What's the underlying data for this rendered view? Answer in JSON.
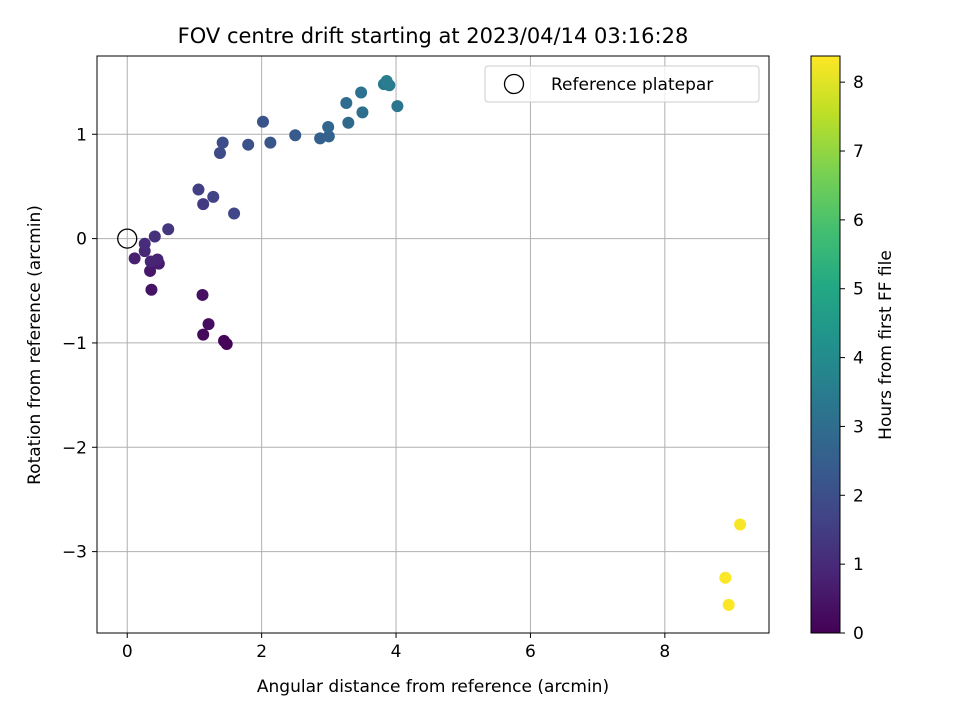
{
  "chart_data": {
    "type": "scatter",
    "title": "FOV centre drift starting at 2023/04/14 03:16:28",
    "xlabel": "Angular distance from reference (arcmin)",
    "ylabel": "Rotation from reference (arcmin)",
    "xlim": [
      -0.45,
      9.55
    ],
    "ylim": [
      -3.78,
      1.75
    ],
    "xticks": [
      0,
      2,
      4,
      6,
      8
    ],
    "xtick_labels": [
      "0",
      "2",
      "4",
      "6",
      "8"
    ],
    "yticks": [
      1,
      0,
      -1,
      -2,
      -3
    ],
    "ytick_labels": [
      "1",
      "0",
      "−1",
      "−2",
      "−3"
    ],
    "grid": true,
    "legend": {
      "position": "upper right",
      "label": "Reference platepar"
    },
    "reference_point": {
      "x": 0,
      "y": 0
    },
    "colorbar": {
      "label": "Hours from first FF file",
      "colormap": "viridis",
      "range": [
        0,
        8.38
      ],
      "ticks": [
        0,
        1,
        2,
        3,
        4,
        5,
        6,
        7,
        8
      ],
      "tick_labels": [
        "0",
        "1",
        "2",
        "3",
        "4",
        "5",
        "6",
        "7",
        "8"
      ]
    },
    "points": [
      {
        "x": 1.48,
        "y": -1.01,
        "c": 0.05
      },
      {
        "x": 1.44,
        "y": -0.98,
        "c": 0.12
      },
      {
        "x": 1.13,
        "y": -0.92,
        "c": 0.2
      },
      {
        "x": 1.21,
        "y": -0.82,
        "c": 0.28
      },
      {
        "x": 1.12,
        "y": -0.54,
        "c": 0.36
      },
      {
        "x": 0.36,
        "y": -0.49,
        "c": 0.45
      },
      {
        "x": 0.34,
        "y": -0.31,
        "c": 0.55
      },
      {
        "x": 0.47,
        "y": -0.24,
        "c": 0.65
      },
      {
        "x": 0.11,
        "y": -0.19,
        "c": 0.75
      },
      {
        "x": 0.45,
        "y": -0.2,
        "c": 0.8
      },
      {
        "x": 0.35,
        "y": -0.22,
        "c": 0.85
      },
      {
        "x": 0.26,
        "y": -0.12,
        "c": 0.95
      },
      {
        "x": 0.26,
        "y": -0.05,
        "c": 1.05
      },
      {
        "x": 0.41,
        "y": 0.02,
        "c": 1.15
      },
      {
        "x": 0.61,
        "y": 0.09,
        "c": 1.3
      },
      {
        "x": 1.13,
        "y": 0.33,
        "c": 1.45
      },
      {
        "x": 1.06,
        "y": 0.47,
        "c": 1.55
      },
      {
        "x": 1.28,
        "y": 0.4,
        "c": 1.65
      },
      {
        "x": 1.59,
        "y": 0.24,
        "c": 1.75
      },
      {
        "x": 1.38,
        "y": 0.82,
        "c": 1.85
      },
      {
        "x": 1.42,
        "y": 0.92,
        "c": 1.95
      },
      {
        "x": 1.8,
        "y": 0.9,
        "c": 2.05
      },
      {
        "x": 2.02,
        "y": 1.12,
        "c": 2.15
      },
      {
        "x": 2.13,
        "y": 0.92,
        "c": 2.25
      },
      {
        "x": 2.5,
        "y": 0.99,
        "c": 2.4
      },
      {
        "x": 2.87,
        "y": 0.96,
        "c": 2.55
      },
      {
        "x": 3.0,
        "y": 0.98,
        "c": 2.65
      },
      {
        "x": 2.99,
        "y": 1.07,
        "c": 2.75
      },
      {
        "x": 3.29,
        "y": 1.11,
        "c": 2.85
      },
      {
        "x": 3.26,
        "y": 1.3,
        "c": 2.95
      },
      {
        "x": 3.5,
        "y": 1.21,
        "c": 3.05
      },
      {
        "x": 3.48,
        "y": 1.4,
        "c": 3.15
      },
      {
        "x": 4.02,
        "y": 1.27,
        "c": 3.25
      },
      {
        "x": 3.82,
        "y": 1.48,
        "c": 3.35
      },
      {
        "x": 3.9,
        "y": 1.47,
        "c": 3.45
      },
      {
        "x": 3.86,
        "y": 1.51,
        "c": 3.55
      },
      {
        "x": 9.12,
        "y": -2.74,
        "c": 8.3
      },
      {
        "x": 8.9,
        "y": -3.25,
        "c": 8.35
      },
      {
        "x": 8.95,
        "y": -3.51,
        "c": 8.38
      }
    ]
  }
}
